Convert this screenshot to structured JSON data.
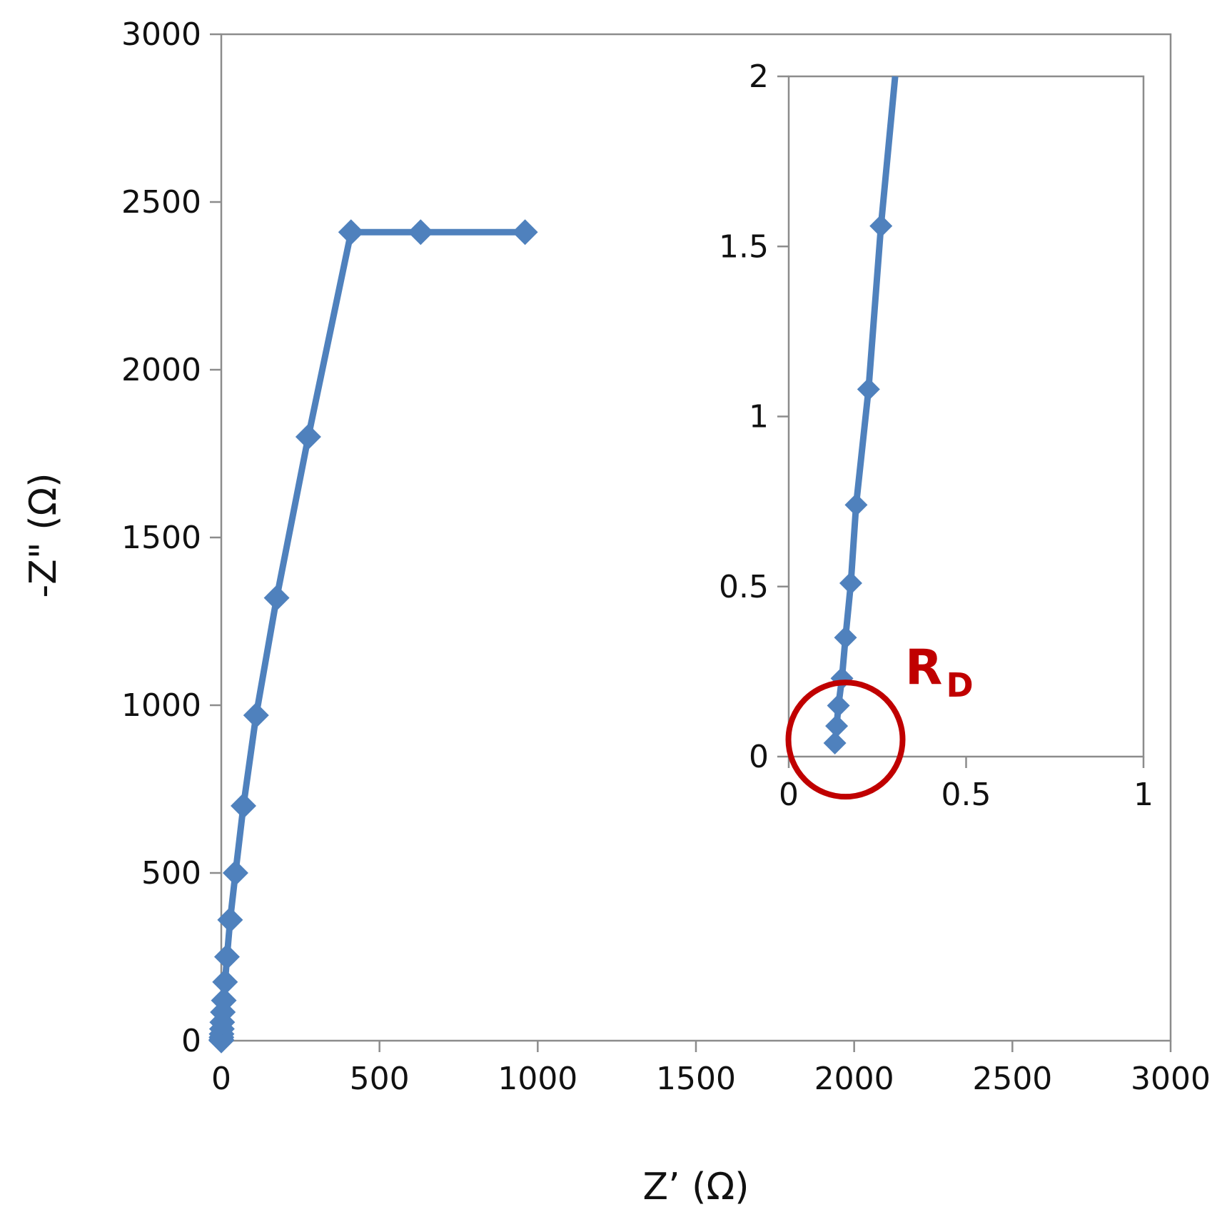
{
  "chart_data": [
    {
      "type": "line",
      "xlabel": "Z’ (Ω)",
      "ylabel": "-Z\" (Ω)",
      "xlim": [
        0,
        3000
      ],
      "ylim": [
        0,
        3000
      ],
      "xticks": [
        "0",
        "500",
        "1000",
        "1500",
        "2000",
        "2500",
        "3000"
      ],
      "yticks": [
        "0",
        "500",
        "1000",
        "1500",
        "2000",
        "2500",
        "3000"
      ],
      "grid": false,
      "marker": "diamond",
      "color": "#4f81bd",
      "series": [
        {
          "x": [
            0.1,
            0.2,
            0.5,
            1,
            2,
            3,
            5,
            8,
            12,
            18,
            28,
            45,
            70,
            110,
            175,
            275,
            410,
            630,
            960
          ],
          "y": [
            0.5,
            3,
            10,
            20,
            35,
            55,
            85,
            120,
            175,
            250,
            360,
            500,
            700,
            970,
            1320,
            1800,
            2410,
            2410,
            2410
          ]
        }
      ]
    },
    {
      "type": "line",
      "xlabel": "",
      "ylabel": "",
      "xlim": [
        0,
        1
      ],
      "ylim": [
        0,
        2
      ],
      "xticks": [
        "0",
        "0.5",
        "1"
      ],
      "yticks": [
        "0",
        "0.5",
        "1",
        "1.5",
        "2"
      ],
      "grid": false,
      "marker": "diamond",
      "color": "#4f81bd",
      "series": [
        {
          "x": [
            0.13,
            0.135,
            0.14,
            0.15,
            0.16,
            0.175,
            0.19,
            0.225,
            0.26,
            0.3
          ],
          "y": [
            0.04,
            0.09,
            0.15,
            0.23,
            0.35,
            0.51,
            0.74,
            1.08,
            1.56,
            2.0
          ],
          "markers_until": 9
        }
      ],
      "annotation": {
        "label_main": "R",
        "label_sub": "D",
        "color": "#c00000",
        "circle_center": [
          0.16,
          0.05
        ]
      }
    }
  ]
}
